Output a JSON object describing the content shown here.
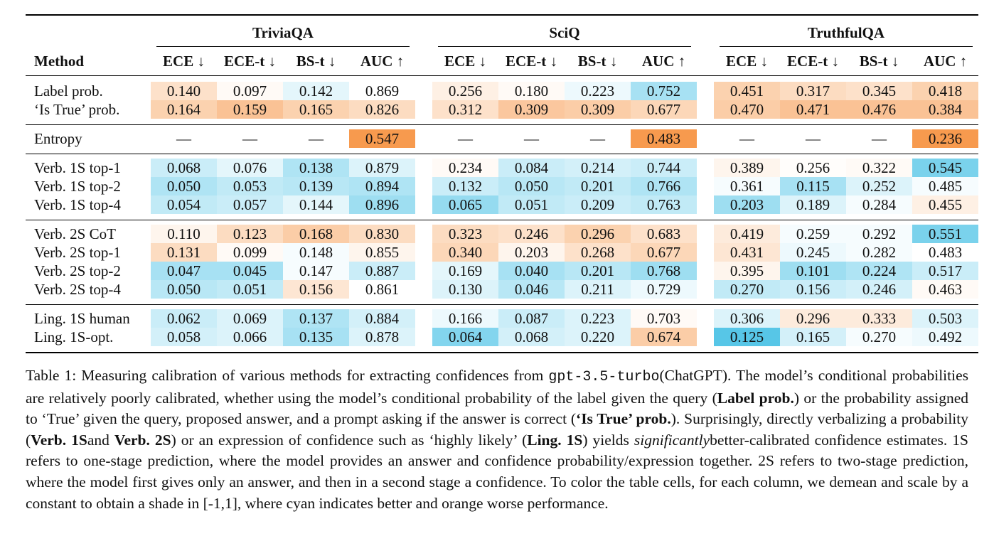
{
  "table": {
    "method_header": "Method",
    "datasets": [
      "TriviaQA",
      "SciQ",
      "TruthfulQA"
    ],
    "metrics": [
      "ECE ↓",
      "ECE-t ↓",
      "BS-t ↓",
      "AUC ↑"
    ],
    "groups": [
      {
        "rows": [
          {
            "method": "Label prob.",
            "values": [
              "0.140",
              "0.097",
              "0.142",
              "0.869",
              "0.256",
              "0.180",
              "0.223",
              "0.752",
              "0.451",
              "0.317",
              "0.345",
              "0.418"
            ],
            "shades": [
              0.3,
              0.05,
              -0.15,
              0.0,
              0.15,
              0.05,
              -0.1,
              -0.5,
              0.45,
              0.35,
              0.3,
              0.45
            ]
          },
          {
            "method": "‘Is True’ prob.",
            "values": [
              "0.164",
              "0.159",
              "0.165",
              "0.826",
              "0.312",
              "0.309",
              "0.309",
              "0.677",
              "0.470",
              "0.471",
              "0.476",
              "0.384"
            ],
            "shades": [
              0.45,
              0.6,
              0.45,
              0.35,
              0.3,
              0.55,
              0.5,
              0.4,
              0.5,
              0.6,
              0.6,
              0.6
            ]
          }
        ]
      },
      {
        "rows": [
          {
            "method": "Entropy",
            "values": [
              "—",
              "—",
              "—",
              "0.547",
              "—",
              "—",
              "—",
              "0.483",
              "—",
              "—",
              "—",
              "0.236"
            ],
            "shades": [
              0,
              0,
              0,
              1.0,
              0,
              0,
              0,
              1.0,
              0,
              0,
              0,
              1.0
            ]
          }
        ]
      },
      {
        "rows": [
          {
            "method": "Verb. 1S top-1",
            "values": [
              "0.068",
              "0.076",
              "0.138",
              "0.879",
              "0.234",
              "0.084",
              "0.214",
              "0.744",
              " 0.389",
              "0.256",
              "0.322",
              "0.545"
            ],
            "shades": [
              -0.3,
              -0.15,
              -0.45,
              -0.2,
              0.05,
              -0.3,
              -0.25,
              -0.3,
              0.1,
              0.02,
              0.05,
              -0.75
            ]
          },
          {
            "method": "Verb. 1S top-2",
            "values": [
              "0.050",
              "0.053",
              "0.139",
              "0.894",
              "0.132",
              "0.050",
              "0.201",
              "0.766",
              "0.361",
              "0.115",
              "0.252",
              "0.485"
            ],
            "shades": [
              -0.45,
              -0.35,
              -0.4,
              -0.45,
              -0.3,
              -0.4,
              -0.35,
              -0.45,
              -0.05,
              -0.5,
              -0.2,
              -0.05
            ]
          },
          {
            "method": "Verb. 1S top-4",
            "values": [
              "0.054",
              "0.057",
              "0.144",
              "0.896",
              "0.065",
              "0.051",
              "0.209",
              "0.763",
              "0.203",
              "0.189",
              "0.284",
              "0.455"
            ],
            "shades": [
              -0.35,
              -0.3,
              -0.15,
              -0.55,
              -0.6,
              -0.35,
              -0.3,
              -0.35,
              -0.55,
              -0.2,
              -0.05,
              0.15
            ]
          }
        ]
      },
      {
        "rows": [
          {
            "method": "Verb. 2S CoT",
            "values": [
              "0.110",
              "0.123",
              "0.168",
              "0.830",
              "0.323",
              "0.246",
              "0.296",
              "0.683",
              "0.419",
              "0.259",
              "0.292",
              "0.551"
            ],
            "shades": [
              0.1,
              0.35,
              0.5,
              0.35,
              0.35,
              0.3,
              0.45,
              0.3,
              0.2,
              -0.05,
              -0.05,
              -0.75
            ]
          },
          {
            "method": "Verb. 2S top-1",
            "values": [
              "0.131",
              "0.099",
              "0.148",
              "0.855",
              "0.340",
              "0.203",
              "0.268",
              "0.677",
              "0.431",
              "0.245",
              "0.282",
              "0.483"
            ],
            "shades": [
              0.35,
              0.05,
              -0.05,
              0.1,
              0.4,
              0.1,
              0.3,
              0.4,
              0.25,
              -0.1,
              -0.05,
              0.0
            ]
          },
          {
            "method": "Verb. 2S top-2",
            "values": [
              "0.047",
              "0.045",
              "0.147",
              "0.887",
              "0.169",
              "0.040",
              "0.201",
              "0.768",
              "0.395",
              "0.101",
              "0.224",
              "0.517"
            ],
            "shades": [
              -0.5,
              -0.5,
              -0.05,
              -0.3,
              -0.15,
              -0.5,
              -0.4,
              -0.55,
              0.1,
              -0.55,
              -0.45,
              -0.3
            ]
          },
          {
            "method": "Verb. 2S top-4",
            "values": [
              "0.050",
              "0.051",
              "0.156",
              "0.861",
              "0.130",
              "0.046",
              "0.211",
              "0.729",
              "0.270",
              "0.156",
              "0.246",
              "0.463"
            ],
            "shades": [
              -0.4,
              -0.35,
              0.25,
              0.0,
              -0.2,
              -0.4,
              -0.2,
              -0.1,
              -0.35,
              -0.3,
              -0.25,
              0.05
            ]
          }
        ]
      },
      {
        "rows": [
          {
            "method": "Ling. 1S human",
            "values": [
              "0.062",
              "0.069",
              "0.137",
              "0.884",
              "0.166",
              "0.087",
              "0.223",
              "0.703",
              "0.306",
              "0.296",
              "0.333",
              "0.503"
            ],
            "shades": [
              -0.3,
              -0.2,
              -0.45,
              -0.25,
              -0.1,
              -0.3,
              -0.2,
              0.05,
              -0.2,
              0.2,
              0.2,
              -0.2
            ]
          },
          {
            "method": "Ling. 1S-opt.",
            "values": [
              "0.058",
              "0.066",
              "0.135",
              "0.878",
              "0.064",
              "0.068",
              "0.220",
              "0.674",
              "0.125",
              "0.165",
              "0.270",
              "0.492"
            ],
            "shades": [
              -0.25,
              -0.2,
              -0.5,
              -0.2,
              -0.7,
              -0.25,
              -0.2,
              0.5,
              -0.95,
              -0.25,
              -0.05,
              -0.1
            ]
          }
        ]
      }
    ]
  },
  "colors": {
    "better": "#4ec3e6",
    "worse": "#f79a4e"
  },
  "caption": {
    "p1": "Table 1: Measuring calibration of various methods for extracting confidences from ",
    "model": "gpt-3.5-turbo",
    "p2": " (ChatGPT). The model’s conditional probabilities are relatively poorly calibrated, whether using the model’s conditional probability of the label given the query (",
    "label_prob": "Label prob.",
    "p3": ") or the probability assigned to ‘True’ given the query, proposed answer, and a prompt asking if the answer is correct (",
    "is_true": "‘Is True’ prob.",
    "p4": "). Surprisingly, directly verbalizing a probability (",
    "verb1s": "Verb. 1S",
    "p5": " and ",
    "verb2s": "Verb. 2S",
    "p6": ") or an expression of confidence such as ‘highly likely’ (",
    "ling1s": "Ling. 1S",
    "p7": ") yields ",
    "significantly": "significantly",
    "p8": " better-calibrated confidence estimates. 1S refers to one-stage prediction, where the model provides an answer and confidence probability/expression together. 2S refers to two-stage prediction, where the model first gives only an answer, and then in a second stage a confidence. To color the table cells, for each column, we demean and scale by a constant to obtain a shade in [-1,1], where cyan indicates better and orange worse performance."
  }
}
